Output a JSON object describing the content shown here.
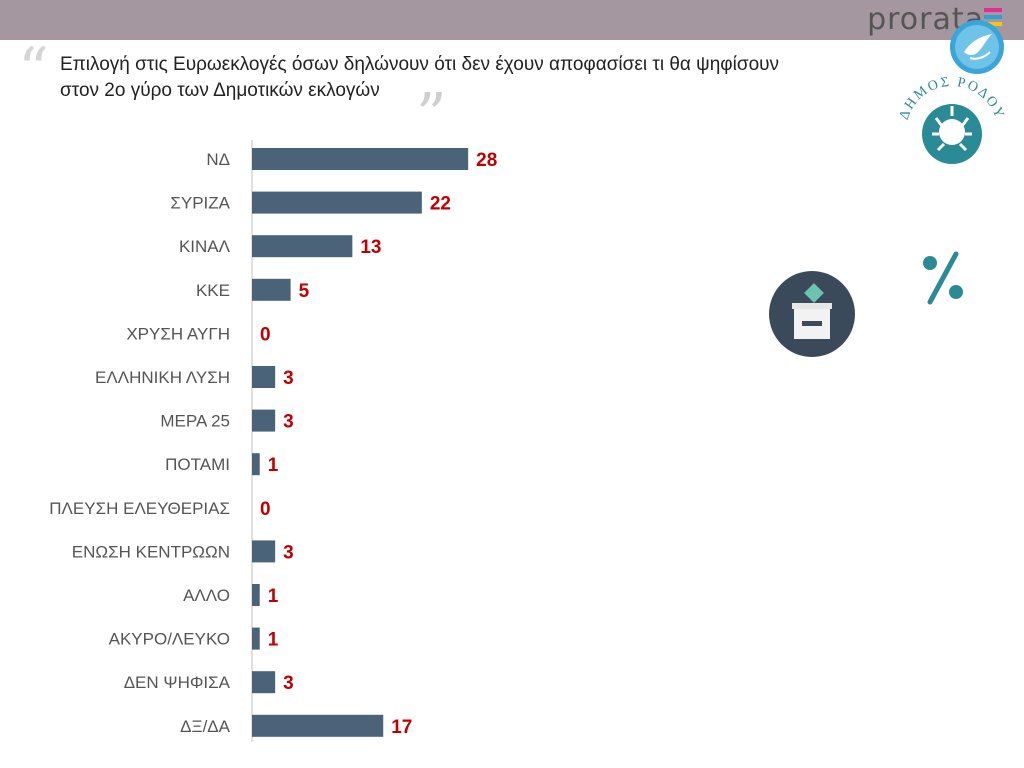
{
  "header": {
    "brand": "prorata",
    "brand_colors": [
      "#e52d8c",
      "#2f9fd8",
      "#f5c518",
      "#6cbf3f"
    ]
  },
  "title_lines": [
    "Επιλογή στις Ευρωεκλογές όσων δηλώνουν ότι δεν έχουν αποφασίσει τι θα ψηφίσουν",
    "στον 2ο γύρο των Δημοτικών εκλογών"
  ],
  "quote_open": "“",
  "quote_close": "”",
  "logos": {
    "badge_icon": "dove-icon",
    "city_seal_text": "ΔΗΜΟΣ ΡΟΔΟΥ",
    "city_seal_icon": "helios-head-icon",
    "ballot_icon": "ballot-box-icon",
    "percent_icon": "percent-icon"
  },
  "colors": {
    "bar": "#4a6378",
    "value_label": "#c00000",
    "category_label": "#555555",
    "axis": "#bfbfbf",
    "topbar": "#a4979f",
    "teal": "#2a8a96"
  },
  "chart_data": {
    "type": "bar",
    "orientation": "horizontal",
    "categories": [
      "ΝΔ",
      "ΣΥΡΙΖΑ",
      "ΚΙΝΑΛ",
      "ΚΚΕ",
      "ΧΡΥΣΗ ΑΥΓΗ",
      "ΕΛΛΗΝΙΚΗ ΛΥΣΗ",
      "ΜΕΡΑ 25",
      "ΠΟΤΑΜΙ",
      "ΠΛΕΥΣΗ ΕΛΕΥΘΕΡΙΑΣ",
      "ΕΝΩΣΗ ΚΕΝΤΡΩΩΝ",
      "ΑΛΛΟ",
      "ΑΚΥΡΟ/ΛΕΥΚΟ",
      "ΔΕΝ ΨΗΦΙΣΑ",
      "ΔΞ/ΔΑ"
    ],
    "values": [
      28,
      22,
      13,
      5,
      0,
      3,
      3,
      1,
      0,
      3,
      1,
      1,
      3,
      17
    ],
    "data_labels": [
      "28",
      "22",
      "13",
      "5",
      "0",
      "3",
      "3",
      "1",
      "0",
      "3",
      "1",
      "1",
      "3",
      "17"
    ],
    "xlim": [
      0,
      30
    ],
    "grid": false,
    "legend": "none"
  }
}
